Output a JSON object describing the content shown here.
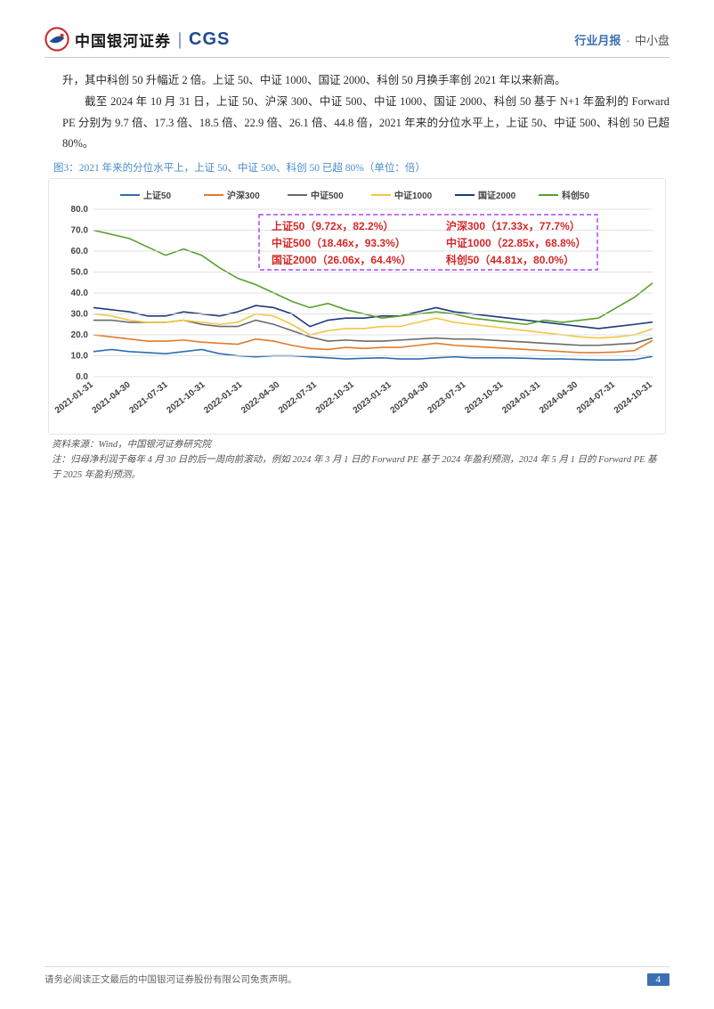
{
  "header": {
    "logo_cn": "中国银河证券",
    "logo_en": "CGS",
    "report_type": "行业月报",
    "category": "中小盘"
  },
  "body": {
    "p1": "升，其中科创 50 升幅近 2 倍。上证 50、中证 1000、国证 2000、科创 50 月换手率创 2021 年以来新高。",
    "p2": "截至 2024 年 10 月 31 日，上证 50、沪深 300、中证 500、中证 1000、国证 2000、科创 50 基于 N+1 年盈利的 Forward PE 分别为 9.7 倍、17.3 倍、18.5 倍、22.9 倍、26.1 倍、44.8 倍，2021 年来的分位水平上，上证 50、中证 500、科创 50 已超 80%。"
  },
  "chart": {
    "caption": "图3：2021 年来的分位水平上，上证 50、中证 500、科创 50 已超 80%（单位：倍）",
    "type": "line",
    "background_color": "#ffffff",
    "grid_color": "#d9d9d9",
    "series": [
      {
        "name": "上证50",
        "color": "#2f6eb5"
      },
      {
        "name": "沪深300",
        "color": "#e07b2c"
      },
      {
        "name": "中证500",
        "color": "#6a6a6a"
      },
      {
        "name": "中证1000",
        "color": "#f2c744"
      },
      {
        "name": "国证2000",
        "color": "#1f3a7a"
      },
      {
        "name": "科创50",
        "color": "#5aa02c"
      }
    ],
    "ylim": [
      0,
      80
    ],
    "ytick_step": 10,
    "yticks": [
      "0.0",
      "10.0",
      "20.0",
      "30.0",
      "40.0",
      "50.0",
      "60.0",
      "70.0",
      "80.0"
    ],
    "x_labels": [
      "2021-01-31",
      "2021-04-30",
      "2021-07-31",
      "2021-10-31",
      "2022-01-31",
      "2022-04-30",
      "2022-07-31",
      "2022-10-31",
      "2023-01-31",
      "2023-04-30",
      "2023-07-31",
      "2023-10-31",
      "2024-01-31",
      "2024-04-30",
      "2024-07-31",
      "2024-10-31"
    ],
    "annotations": [
      {
        "label": "上证50（9.72x，82.2%）",
        "row": 0,
        "col": 0
      },
      {
        "label": "沪深300（17.33x，77.7%）",
        "row": 0,
        "col": 1
      },
      {
        "label": "中证500（18.46x，93.3%）",
        "row": 1,
        "col": 0
      },
      {
        "label": "中证1000（22.85x，68.8%）",
        "row": 1,
        "col": 1
      },
      {
        "label": "国证2000（26.06x，64.4%）",
        "row": 2,
        "col": 0
      },
      {
        "label": "科创50（44.81x，80.0%）",
        "row": 2,
        "col": 1
      }
    ],
    "annotation_color": "#d62728",
    "annotation_border_color": "#a020f0",
    "line_width": 1.6,
    "data": {
      "sz50": [
        12,
        13,
        12,
        11.5,
        11,
        12,
        13,
        11,
        10,
        9.5,
        10,
        10,
        9.5,
        9,
        8.5,
        8.8,
        9,
        8.5,
        8.5,
        9,
        9.5,
        9,
        9,
        9,
        8.8,
        8.5,
        8.5,
        8.2,
        8,
        8,
        8.2,
        9.7
      ],
      "hs300": [
        20,
        19,
        18,
        17,
        17,
        17.5,
        16.5,
        16,
        15.5,
        18,
        17,
        15,
        13.5,
        13,
        14,
        13.5,
        14,
        14,
        15,
        16,
        15,
        14.5,
        14,
        13.5,
        13,
        12.5,
        12,
        11.5,
        11.5,
        11.8,
        12.5,
        17.3
      ],
      "zz500": [
        27,
        27,
        26,
        26,
        26,
        27,
        25,
        24,
        24,
        27,
        25,
        22,
        19,
        17,
        17.5,
        17,
        17,
        17.5,
        18,
        18.5,
        18,
        18,
        17.5,
        17,
        16.5,
        16,
        15.5,
        15,
        15,
        15.5,
        16,
        18.5
      ],
      "zz1000": [
        30,
        29,
        27,
        26,
        26,
        27,
        26,
        25,
        26,
        30,
        29,
        25,
        20,
        22,
        23,
        23,
        24,
        24,
        26,
        28,
        26,
        25,
        24,
        23,
        22,
        21,
        20,
        19,
        18.5,
        19,
        20,
        22.9
      ],
      "gz2000": [
        33,
        32,
        31,
        29,
        29,
        31,
        30,
        29,
        31,
        34,
        33,
        30,
        24,
        27,
        28,
        28,
        29,
        29,
        31,
        33,
        31,
        30,
        29,
        28,
        27,
        26,
        25,
        24,
        23,
        24,
        25,
        26.1
      ],
      "kc50": [
        70,
        68,
        66,
        62,
        58,
        61,
        58,
        52,
        47,
        44,
        40,
        36,
        33,
        35,
        32,
        30,
        28,
        29,
        30,
        31,
        30,
        28,
        27,
        26,
        25,
        27,
        26,
        27,
        28,
        33,
        38,
        44.8
      ]
    },
    "source": "资料来源：Wind，中国银河证券研究院",
    "note": "注：归母净利润于每年 4 月 30 日的后一周向前滚动，例如 2024 年 3 月 1 日的 Forward PE 基于 2024 年盈利预测，2024 年 5 月 1 日的 Forward PE 基于 2025 年盈利预测。"
  },
  "footer": {
    "disclaimer": "请务必阅读正文最后的中国银河证券股份有限公司免责声明。",
    "page": "4"
  }
}
